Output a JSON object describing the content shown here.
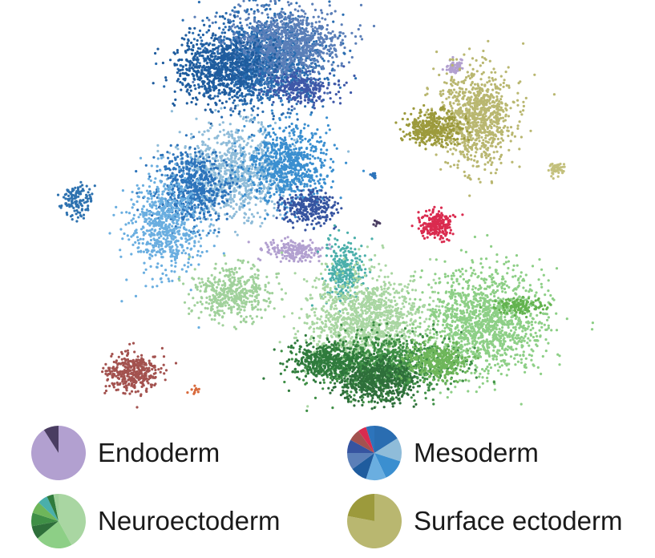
{
  "chart_data": {
    "type": "scatter",
    "title": "",
    "xlabel": "",
    "ylabel": "",
    "axes_visible": false,
    "grid": false,
    "legend_placement": "bottom",
    "clusters": [
      {
        "lineage": "Mesoderm",
        "color": "#2a6db1",
        "center": [
          330,
          75
        ],
        "spread": [
          48,
          38
        ],
        "n": 1400
      },
      {
        "lineage": "Mesoderm",
        "color": "#5b7fb8",
        "center": [
          355,
          55
        ],
        "spread": [
          45,
          30
        ],
        "n": 900
      },
      {
        "lineage": "Mesoderm",
        "color": "#1f5c9e",
        "center": [
          275,
          85
        ],
        "spread": [
          38,
          28
        ],
        "n": 700
      },
      {
        "lineage": "Mesoderm",
        "color": "#3e58a8",
        "center": [
          375,
          110
        ],
        "spread": [
          28,
          12
        ],
        "n": 250
      },
      {
        "lineage": "Mesoderm",
        "color": "#8fbcd9",
        "center": [
          290,
          215
        ],
        "spread": [
          45,
          38
        ],
        "n": 900
      },
      {
        "lineage": "Mesoderm",
        "color": "#3b8fd0",
        "center": [
          360,
          205
        ],
        "spread": [
          35,
          32
        ],
        "n": 700
      },
      {
        "lineage": "Mesoderm",
        "color": "#2d74bb",
        "center": [
          240,
          235
        ],
        "spread": [
          30,
          30
        ],
        "n": 600
      },
      {
        "lineage": "Mesoderm",
        "color": "#6aaee0",
        "center": [
          205,
          280
        ],
        "spread": [
          30,
          40
        ],
        "n": 650
      },
      {
        "lineage": "Mesoderm",
        "color": "#3654a0",
        "center": [
          385,
          260
        ],
        "spread": [
          22,
          14
        ],
        "n": 250
      },
      {
        "lineage": "Mesoderm",
        "color": "#2e72b0",
        "center": [
          97,
          250
        ],
        "spread": [
          12,
          14
        ],
        "n": 130
      },
      {
        "lineage": "Mesoderm",
        "color": "#da2b4f",
        "center": [
          545,
          280
        ],
        "spread": [
          14,
          12
        ],
        "n": 220
      },
      {
        "lineage": "Mesoderm",
        "color": "#2d74bb",
        "center": [
          466,
          219
        ],
        "spread": [
          3,
          3
        ],
        "n": 12
      },
      {
        "lineage": "Endoderm",
        "color": "#b2a0d0",
        "center": [
          365,
          312
        ],
        "spread": [
          22,
          9
        ],
        "n": 200
      },
      {
        "lineage": "Endoderm",
        "color": "#b2a0d0",
        "center": [
          568,
          84
        ],
        "spread": [
          8,
          7
        ],
        "n": 60
      },
      {
        "lineage": "Endoderm",
        "color": "#4a3d62",
        "center": [
          470,
          278
        ],
        "spread": [
          3,
          3
        ],
        "n": 8
      },
      {
        "lineage": "Neuroectoderm",
        "color": "#4aafaa",
        "center": [
          430,
          340
        ],
        "spread": [
          16,
          26
        ],
        "n": 280
      },
      {
        "lineage": "Neuroectoderm",
        "color": "#a9d6a2",
        "center": [
          455,
          400
        ],
        "spread": [
          48,
          40
        ],
        "n": 1200
      },
      {
        "lineage": "Neuroectoderm",
        "color": "#a0d19b",
        "center": [
          290,
          365
        ],
        "spread": [
          32,
          22
        ],
        "n": 450
      },
      {
        "lineage": "Neuroectoderm",
        "color": "#8dcf86",
        "center": [
          605,
          400
        ],
        "spread": [
          50,
          42
        ],
        "n": 1300
      },
      {
        "lineage": "Neuroectoderm",
        "color": "#63b34f",
        "center": [
          650,
          382
        ],
        "spread": [
          22,
          7
        ],
        "n": 120
      },
      {
        "lineage": "Neuroectoderm",
        "color": "#3f8f46",
        "center": [
          480,
          455
        ],
        "spread": [
          55,
          24
        ],
        "n": 1000
      },
      {
        "lineage": "Neuroectoderm",
        "color": "#2e6f3a",
        "center": [
          470,
          475
        ],
        "spread": [
          32,
          18
        ],
        "n": 550
      },
      {
        "lineage": "Neuroectoderm",
        "color": "#6eb65a",
        "center": [
          545,
          450
        ],
        "spread": [
          24,
          16
        ],
        "n": 350
      },
      {
        "lineage": "Neuroectoderm",
        "color": "#2f7b3c",
        "center": [
          405,
          450
        ],
        "spread": [
          30,
          14
        ],
        "n": 400
      },
      {
        "lineage": "Neuroectoderm",
        "color": "#a3524f",
        "center": [
          165,
          465
        ],
        "spread": [
          22,
          16
        ],
        "n": 380
      },
      {
        "lineage": "Neuroectoderm",
        "color": "#d86a3c",
        "center": [
          241,
          488
        ],
        "spread": [
          4,
          3
        ],
        "n": 12
      },
      {
        "lineage": "Surface ectoderm",
        "color": "#b9b770",
        "center": [
          595,
          145
        ],
        "spread": [
          30,
          40
        ],
        "n": 900
      },
      {
        "lineage": "Surface ectoderm",
        "color": "#9c9a3c",
        "center": [
          540,
          160
        ],
        "spread": [
          24,
          14
        ],
        "n": 350
      },
      {
        "lineage": "Surface ectoderm",
        "color": "#c3c07c",
        "center": [
          694,
          212
        ],
        "spread": [
          6,
          6
        ],
        "n": 50
      }
    ],
    "legend": [
      {
        "label": "Endoderm",
        "slices": [
          {
            "color": "#b2a0d0",
            "fraction": 0.91
          },
          {
            "color": "#4a3d62",
            "fraction": 0.09
          }
        ]
      },
      {
        "label": "Mesoderm",
        "slices": [
          {
            "color": "#2a6db1",
            "fraction": 0.16
          },
          {
            "color": "#8fbcd9",
            "fraction": 0.14
          },
          {
            "color": "#3b8fd0",
            "fraction": 0.13
          },
          {
            "color": "#6aaee0",
            "fraction": 0.12
          },
          {
            "color": "#1f5c9e",
            "fraction": 0.1
          },
          {
            "color": "#5b7fb8",
            "fraction": 0.1
          },
          {
            "color": "#3654a0",
            "fraction": 0.08
          },
          {
            "color": "#a3524f",
            "fraction": 0.07
          },
          {
            "color": "#da2b4f",
            "fraction": 0.05
          },
          {
            "color": "#2d74bb",
            "fraction": 0.05
          }
        ]
      },
      {
        "label": "Neuroectoderm",
        "slices": [
          {
            "color": "#a9d6a2",
            "fraction": 0.42
          },
          {
            "color": "#8dcf86",
            "fraction": 0.22
          },
          {
            "color": "#2e6f3a",
            "fraction": 0.08
          },
          {
            "color": "#3f8f46",
            "fraction": 0.08
          },
          {
            "color": "#6eb65a",
            "fraction": 0.07
          },
          {
            "color": "#4aafaa",
            "fraction": 0.06
          },
          {
            "color": "#2f7b3c",
            "fraction": 0.04
          },
          {
            "color": "#a0d19b",
            "fraction": 0.03
          }
        ]
      },
      {
        "label": "Surface ectoderm",
        "slices": [
          {
            "color": "#b9b770",
            "fraction": 0.78
          },
          {
            "color": "#9c9a3c",
            "fraction": 0.22
          }
        ]
      }
    ]
  }
}
